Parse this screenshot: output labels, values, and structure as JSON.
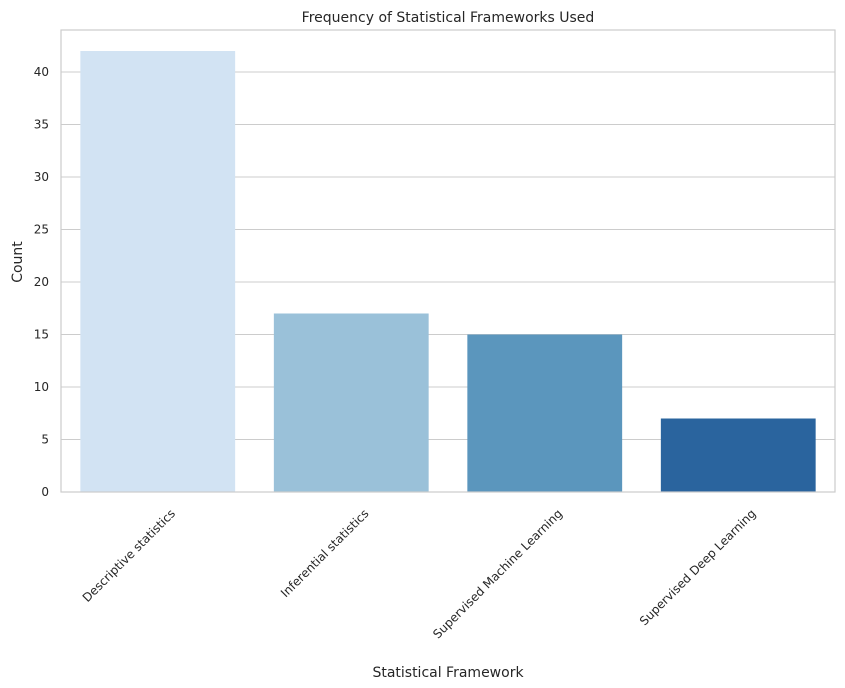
{
  "chart_data": {
    "type": "bar",
    "title": "Frequency of Statistical Frameworks Used",
    "xlabel": "Statistical Framework",
    "ylabel": "Count",
    "categories": [
      "Descriptive statistics",
      "Inferential statistics",
      "Supervised Machine Learning",
      "Supervised Deep Learning"
    ],
    "values": [
      42,
      17,
      15,
      7
    ],
    "colors": [
      "#d2e3f3",
      "#9ac1d9",
      "#5b96bd",
      "#2a649e"
    ],
    "ylim": [
      0,
      44
    ],
    "yticks": [
      0,
      5,
      10,
      15,
      20,
      25,
      30,
      35,
      40
    ],
    "grid": true,
    "x_tick_rotation_deg": 45
  }
}
